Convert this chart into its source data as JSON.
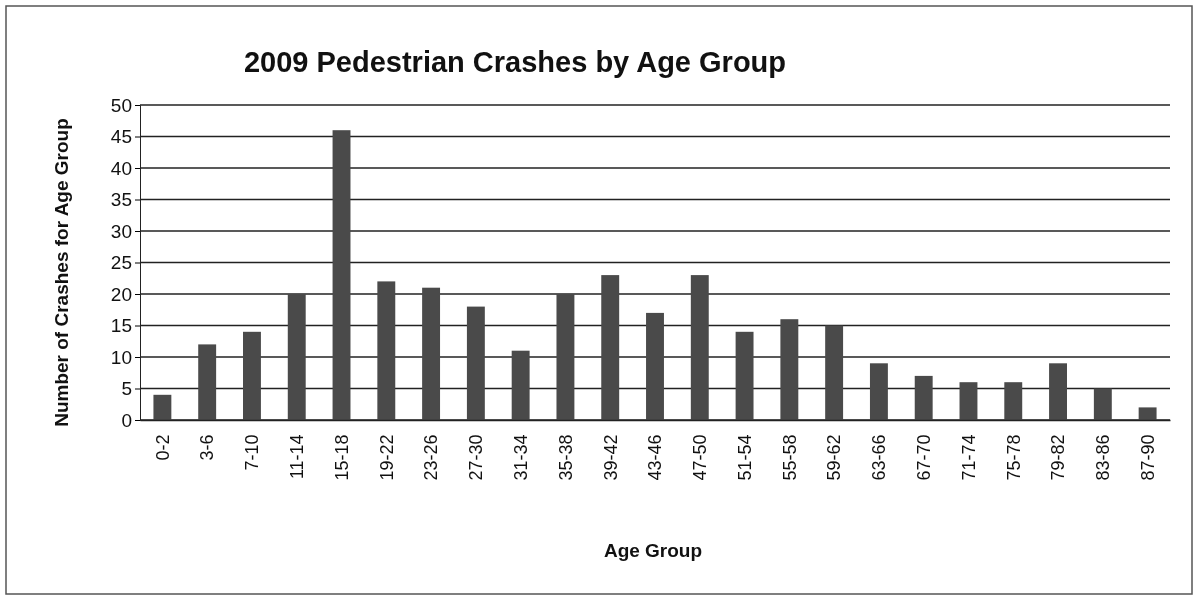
{
  "chart_data": {
    "type": "bar",
    "title": "2009 Pedestrian Crashes by Age Group",
    "xlabel": "Age Group",
    "ylabel": "Number of Crashes for Age Group",
    "categories": [
      "0-2",
      "3-6",
      "7-10",
      "11-14",
      "15-18",
      "19-22",
      "23-26",
      "27-30",
      "31-34",
      "35-38",
      "39-42",
      "43-46",
      "47-50",
      "51-54",
      "55-58",
      "59-62",
      "63-66",
      "67-70",
      "71-74",
      "75-78",
      "79-82",
      "83-86",
      "87-90"
    ],
    "values": [
      4,
      12,
      14,
      20,
      46,
      22,
      21,
      18,
      11,
      20,
      23,
      17,
      23,
      14,
      16,
      15,
      9,
      7,
      6,
      6,
      9,
      5,
      2
    ],
    "color": "#4a4a4a",
    "ylim": [
      0,
      50
    ],
    "yticks": [
      0,
      5,
      10,
      15,
      20,
      25,
      30,
      35,
      40,
      45,
      50
    ],
    "grid": "y"
  }
}
